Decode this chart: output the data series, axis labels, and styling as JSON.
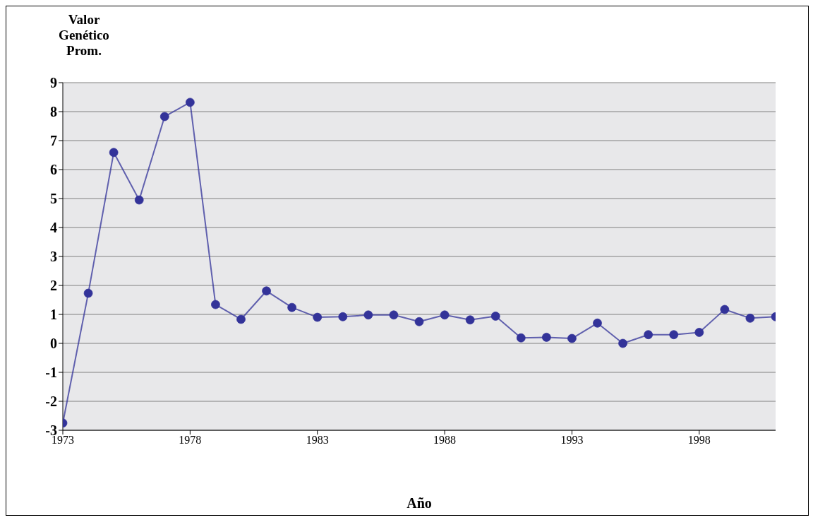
{
  "chart_data": {
    "type": "line",
    "xlabel": "Año",
    "ylabel": "Valor Genético Prom.",
    "x": [
      1973,
      1974,
      1975,
      1976,
      1977,
      1978,
      1979,
      1980,
      1981,
      1982,
      1983,
      1984,
      1985,
      1986,
      1987,
      1988,
      1989,
      1990,
      1991,
      1992,
      1993,
      1994,
      1995,
      1996,
      1997,
      1998,
      1999,
      2000,
      2001
    ],
    "series": [
      {
        "color": "#333399",
        "values": [
          -2.75,
          1.73,
          6.59,
          4.95,
          7.83,
          8.32,
          1.34,
          0.83,
          1.81,
          1.24,
          0.9,
          0.92,
          0.98,
          0.98,
          0.75,
          0.98,
          0.81,
          0.94,
          0.19,
          0.21,
          0.17,
          0.7,
          0,
          0.3,
          0.3,
          0.38,
          1.17,
          0.87,
          0.92
        ]
      }
    ],
    "xlim": [
      1973,
      2001
    ],
    "xticks": [
      1973,
      1978,
      1983,
      1988,
      1993,
      1998
    ],
    "ylim": [
      -3,
      9
    ],
    "yticks": [
      -3,
      -2,
      -1,
      0,
      1,
      2,
      3,
      4,
      5,
      6,
      7,
      8,
      9
    ],
    "grid": "y",
    "marker": "circle",
    "line_style": "solid",
    "legend": false
  }
}
